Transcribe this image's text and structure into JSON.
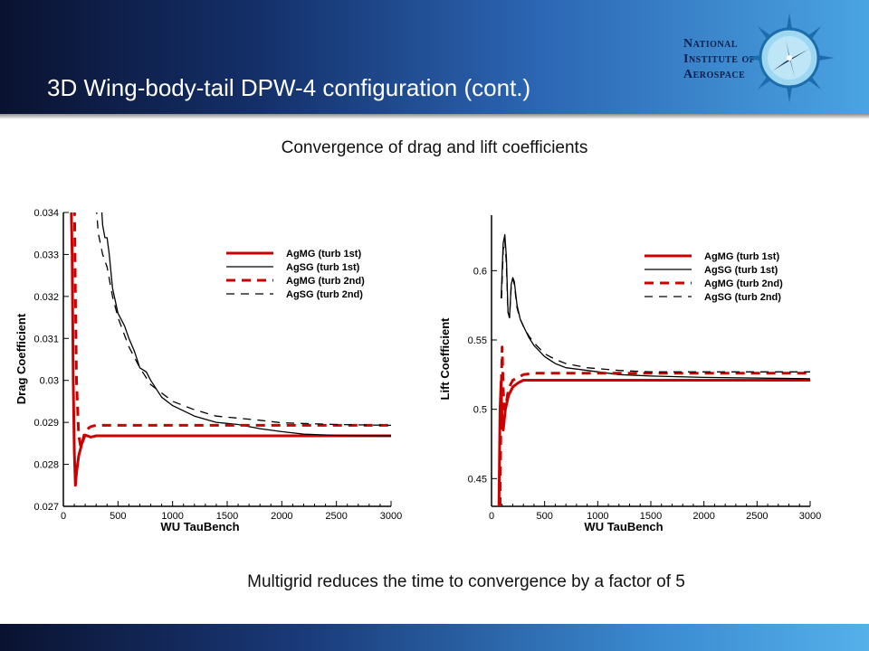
{
  "slide": {
    "title": "3D Wing-body-tail DPW-4 configuration (cont.)",
    "subtitle": "Convergence of drag and lift coefficients",
    "footnote": "Multigrid reduces the time to convergence by a factor of 5",
    "logo": {
      "line1": "National",
      "line2": "Institute of",
      "line3": "Aerospace"
    }
  },
  "colors": {
    "red": "#cc0000",
    "black": "#000000",
    "header_dark": "#0a1230",
    "header_light": "#4aa4e2"
  },
  "chart_data": [
    {
      "type": "line",
      "xlabel": "WU TauBench",
      "ylabel": "Drag Coefficient",
      "xlim": [
        0,
        3000
      ],
      "ylim": [
        0.027,
        0.034
      ],
      "xticks": [
        "0",
        "500",
        "1000",
        "1500",
        "2000",
        "2500",
        "3000"
      ],
      "yticks": [
        "0.027",
        "0.028",
        "0.029",
        "0.03",
        "0.031",
        "0.032",
        "0.033",
        "0.034"
      ],
      "legend_position": "top-right",
      "grid": false,
      "series": [
        {
          "name": "AgMG (turb 1st)",
          "color": "#cc0000",
          "style": "solid-thick",
          "points": [
            [
              70,
              0.0345
            ],
            [
              80,
              0.033
            ],
            [
              90,
              0.03
            ],
            [
              100,
              0.0283
            ],
            [
              110,
              0.0275
            ],
            [
              120,
              0.0278
            ],
            [
              140,
              0.0282
            ],
            [
              170,
              0.0285
            ],
            [
              200,
              0.0287
            ],
            [
              250,
              0.02865
            ],
            [
              300,
              0.02868
            ],
            [
              400,
              0.02868
            ],
            [
              3000,
              0.02868
            ]
          ]
        },
        {
          "name": "AgSG (turb 1st)",
          "color": "#000000",
          "style": "solid-thin",
          "points": [
            [
              340,
              0.0345
            ],
            [
              360,
              0.0337
            ],
            [
              380,
              0.0334
            ],
            [
              400,
              0.0334
            ],
            [
              420,
              0.033
            ],
            [
              450,
              0.0322
            ],
            [
              500,
              0.0316
            ],
            [
              560,
              0.0313
            ],
            [
              600,
              0.031
            ],
            [
              650,
              0.0307
            ],
            [
              700,
              0.0303
            ],
            [
              760,
              0.0302
            ],
            [
              800,
              0.03
            ],
            [
              900,
              0.0296
            ],
            [
              1000,
              0.0294
            ],
            [
              1200,
              0.02915
            ],
            [
              1400,
              0.029
            ],
            [
              1600,
              0.02895
            ],
            [
              1800,
              0.02885
            ],
            [
              2000,
              0.02878
            ],
            [
              2200,
              0.02872
            ],
            [
              2500,
              0.02869
            ],
            [
              3000,
              0.02868
            ]
          ]
        },
        {
          "name": "AgMG (turb 2nd)",
          "color": "#cc0000",
          "style": "dashed-thick",
          "points": [
            [
              100,
              0.0345
            ],
            [
              110,
              0.032
            ],
            [
              120,
              0.03
            ],
            [
              140,
              0.0287
            ],
            [
              160,
              0.0284
            ],
            [
              180,
              0.0286
            ],
            [
              200,
              0.0288
            ],
            [
              250,
              0.0289
            ],
            [
              300,
              0.02893
            ],
            [
              3000,
              0.02893
            ]
          ]
        },
        {
          "name": "AgSG (turb 2nd)",
          "color": "#000000",
          "style": "dashed-thin",
          "points": [
            [
              290,
              0.0345
            ],
            [
              320,
              0.0335
            ],
            [
              360,
              0.033
            ],
            [
              400,
              0.0327
            ],
            [
              450,
              0.032
            ],
            [
              500,
              0.0315
            ],
            [
              600,
              0.0308
            ],
            [
              700,
              0.0303
            ],
            [
              800,
              0.0299
            ],
            [
              900,
              0.0297
            ],
            [
              1000,
              0.0295
            ],
            [
              1200,
              0.0293
            ],
            [
              1400,
              0.02915
            ],
            [
              1600,
              0.0291
            ],
            [
              1800,
              0.02905
            ],
            [
              2000,
              0.02899
            ],
            [
              2500,
              0.02895
            ],
            [
              3000,
              0.02893
            ]
          ]
        }
      ]
    },
    {
      "type": "line",
      "xlabel": "WU TauBench",
      "ylabel": "Lift Coefficient",
      "xlim": [
        0,
        3000
      ],
      "ylim": [
        0.43,
        0.64
      ],
      "xticks": [
        "0",
        "500",
        "1000",
        "1500",
        "2000",
        "2500",
        "3000"
      ],
      "yticks": [
        "0.45",
        "0.5",
        "0.55",
        "0.6"
      ],
      "ytick_values": [
        0.45,
        0.5,
        0.55,
        0.6
      ],
      "legend_position": "top-right",
      "grid": false,
      "series": [
        {
          "name": "AgMG (turb 1st)",
          "color": "#cc0000",
          "style": "solid-thick",
          "points": [
            [
              70,
              0.43
            ],
            [
              80,
              0.5
            ],
            [
              90,
              0.52
            ],
            [
              100,
              0.49
            ],
            [
              110,
              0.485
            ],
            [
              130,
              0.5
            ],
            [
              160,
              0.51
            ],
            [
              200,
              0.516
            ],
            [
              250,
              0.519
            ],
            [
              300,
              0.521
            ],
            [
              400,
              0.521
            ],
            [
              3000,
              0.521
            ]
          ]
        },
        {
          "name": "AgSG (turb 1st)",
          "color": "#000000",
          "style": "solid-thin",
          "points": [
            [
              90,
              0.58
            ],
            [
              110,
              0.62
            ],
            [
              125,
              0.626
            ],
            [
              140,
              0.61
            ],
            [
              155,
              0.57
            ],
            [
              170,
              0.566
            ],
            [
              185,
              0.59
            ],
            [
              200,
              0.595
            ],
            [
              215,
              0.592
            ],
            [
              240,
              0.575
            ],
            [
              270,
              0.565
            ],
            [
              300,
              0.56
            ],
            [
              350,
              0.552
            ],
            [
              400,
              0.546
            ],
            [
              500,
              0.538
            ],
            [
              600,
              0.533
            ],
            [
              700,
              0.53
            ],
            [
              900,
              0.528
            ],
            [
              1200,
              0.525
            ],
            [
              1500,
              0.524
            ],
            [
              2000,
              0.523
            ],
            [
              3000,
              0.522
            ]
          ]
        },
        {
          "name": "AgMG (turb 2nd)",
          "color": "#cc0000",
          "style": "dashed-thick",
          "points": [
            [
              80,
              0.43
            ],
            [
              90,
              0.51
            ],
            [
              100,
              0.545
            ],
            [
              110,
              0.515
            ],
            [
              120,
              0.5
            ],
            [
              140,
              0.505
            ],
            [
              160,
              0.515
            ],
            [
              200,
              0.521
            ],
            [
              250,
              0.523
            ],
            [
              300,
              0.525
            ],
            [
              400,
              0.526
            ],
            [
              3000,
              0.526
            ]
          ]
        },
        {
          "name": "AgSG (turb 2nd)",
          "color": "#000000",
          "style": "dashed-thin",
          "points": [
            [
              95,
              0.58
            ],
            [
              110,
              0.615
            ],
            [
              125,
              0.622
            ],
            [
              140,
              0.605
            ],
            [
              155,
              0.57
            ],
            [
              170,
              0.566
            ],
            [
              185,
              0.588
            ],
            [
              200,
              0.594
            ],
            [
              215,
              0.59
            ],
            [
              240,
              0.573
            ],
            [
              270,
              0.565
            ],
            [
              300,
              0.56
            ],
            [
              350,
              0.553
            ],
            [
              400,
              0.548
            ],
            [
              500,
              0.54
            ],
            [
              600,
              0.536
            ],
            [
              700,
              0.533
            ],
            [
              900,
              0.53
            ],
            [
              1200,
              0.528
            ],
            [
              1500,
              0.527
            ],
            [
              2000,
              0.527
            ],
            [
              3000,
              0.527
            ]
          ]
        }
      ]
    }
  ]
}
